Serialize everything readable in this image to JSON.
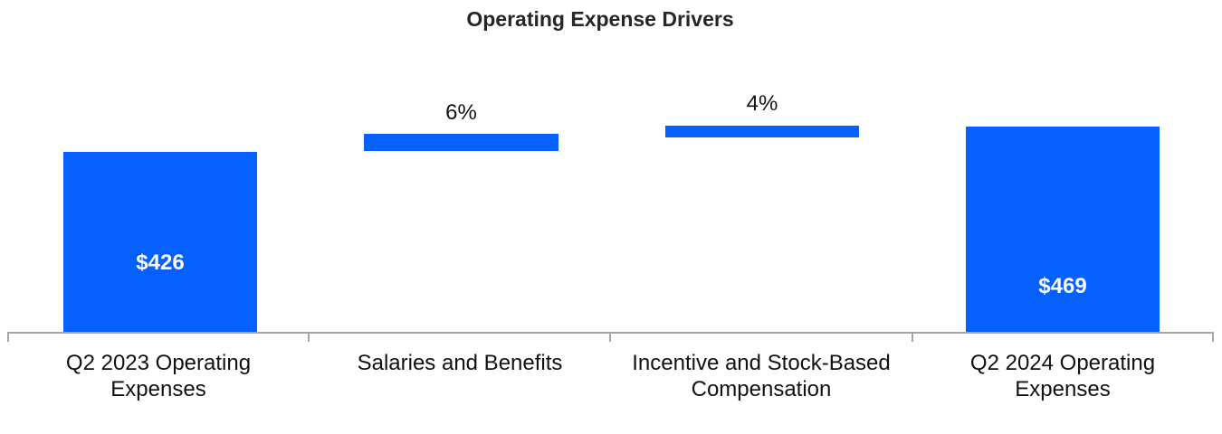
{
  "chart_data": {
    "type": "bar",
    "subtype": "waterfall",
    "title": "Operating Expense Drivers",
    "categories": [
      "Q2 2023 Operating Expenses",
      "Salaries and Benefits",
      "Incentive and Stock-Based Compensation",
      "Q2 2024 Operating Expenses"
    ],
    "bars": [
      {
        "category": "Q2 2023 Operating Expenses",
        "role": "total",
        "value": 426,
        "label": "$426",
        "label_position": "inside"
      },
      {
        "category": "Salaries and Benefits",
        "role": "increase",
        "value_pct": 6,
        "label": "6%",
        "label_position": "above"
      },
      {
        "category": "Incentive and Stock-Based Compensation",
        "role": "increase",
        "value_pct": 4,
        "label": "4%",
        "label_position": "above"
      },
      {
        "category": "Q2 2024 Operating Expenses",
        "role": "total",
        "value": 469,
        "label": "$469",
        "label_position": "inside"
      }
    ],
    "xlabel": "",
    "ylabel": "",
    "y_axis_visible": false,
    "x_axis_baseline_visible": true,
    "x_axis_tick_count": 5,
    "grid": false,
    "legend": "none"
  },
  "colors": {
    "accent": "#0560FC",
    "axis": "#A6A6A6",
    "text": "#111111",
    "value_text": "#FFFFFF",
    "background": "#FFFFFF"
  }
}
